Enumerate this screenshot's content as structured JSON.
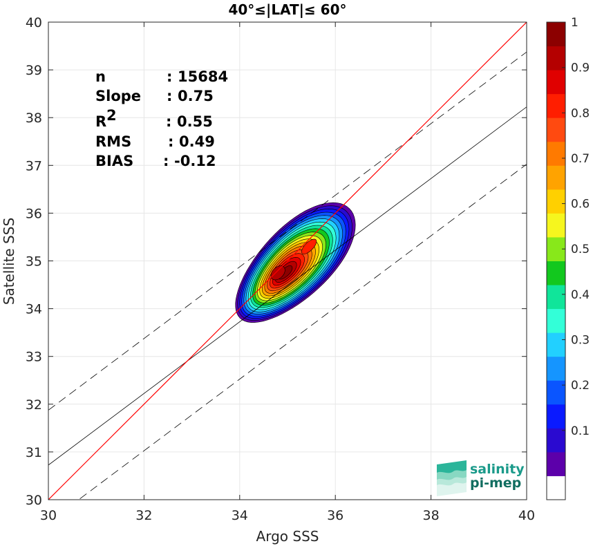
{
  "chart_data": {
    "type": "contour-scatter",
    "title": "40°≤|LAT|≤ 60°",
    "xlabel": "Argo SSS",
    "ylabel": "Satellite SSS",
    "xlim": [
      30,
      40
    ],
    "ylim": [
      30,
      40
    ],
    "xticks": [
      "30",
      "32",
      "34",
      "36",
      "38",
      "40"
    ],
    "yticks": [
      "30",
      "31",
      "32",
      "33",
      "34",
      "35",
      "36",
      "37",
      "38",
      "39",
      "40"
    ],
    "grid": true,
    "stats": [
      {
        "label": "n",
        "sep": ":",
        "value": "15684"
      },
      {
        "label": "Slope",
        "sep": ":",
        "value": "0.75"
      },
      {
        "label": "R",
        "sup": "2",
        "sep": ":",
        "value": "0.55"
      },
      {
        "label": "RMS",
        "sep": ":",
        "value": "0.49"
      },
      {
        "label": "BIAS",
        "sep": ":",
        "value": "-0.12"
      }
    ],
    "lines": {
      "identity": {
        "color": "#ff0000",
        "slope": 1,
        "intercept": 0
      },
      "fit": {
        "color": "#000000",
        "slope": 0.75,
        "center": [
          34.5,
          34.1
        ]
      },
      "upper_dashed_offset": 1.15,
      "lower_dashed_offset": -1.2
    },
    "density": {
      "center": [
        35.15,
        34.95
      ],
      "peaks": [
        {
          "x": 34.8,
          "y": 34.75
        },
        {
          "x": 35.45,
          "y": 35.3
        }
      ]
    },
    "colorbar": {
      "ticks": [
        "0.1",
        "0.2",
        "0.3",
        "0.4",
        "0.5",
        "0.6",
        "0.7",
        "0.8",
        "0.9",
        "1"
      ],
      "levels": [
        "#ffffff",
        "#5c00aa",
        "#2a0ad0",
        "#0a1aff",
        "#0a55ff",
        "#1595ff",
        "#22d0ff",
        "#33ffd8",
        "#10e59a",
        "#12c81e",
        "#88e81a",
        "#f6f61e",
        "#ffd000",
        "#ffa300",
        "#ff7a00",
        "#ff4a10",
        "#ff1e00",
        "#e00000",
        "#b40000",
        "#8c0000"
      ]
    },
    "logo": {
      "line1": "salinity",
      "line2": "pi-mep"
    }
  }
}
